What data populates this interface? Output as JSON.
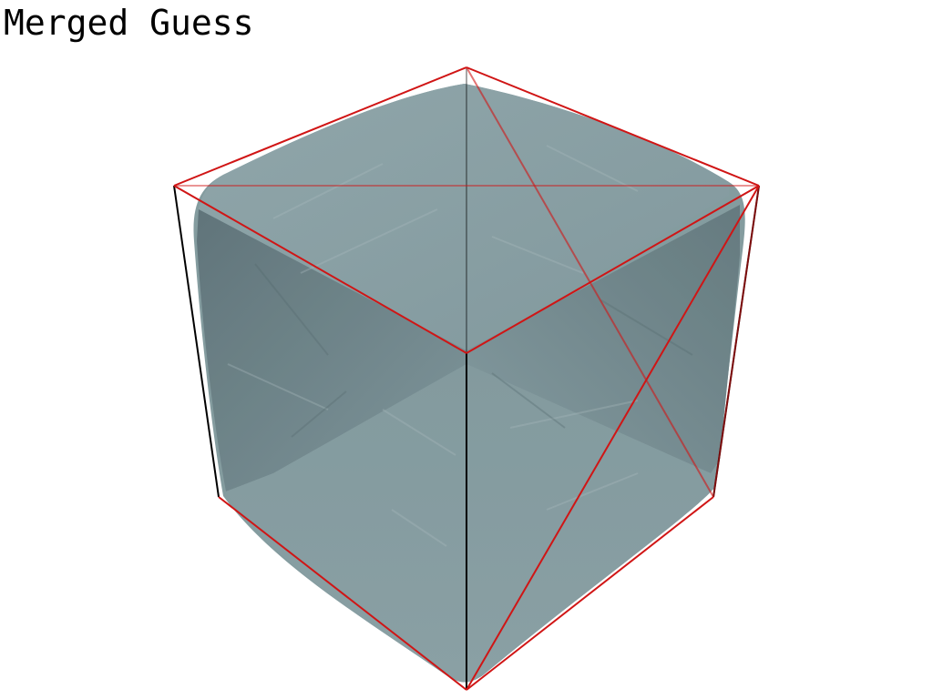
{
  "title": "Merged Guess",
  "colors": {
    "background": "#ffffff",
    "surface": "#7f989c",
    "surface_shadow": "#5d7378",
    "surface_highlight": "#96acb0",
    "edge_red": "#d01515",
    "edge_black": "#000000"
  }
}
